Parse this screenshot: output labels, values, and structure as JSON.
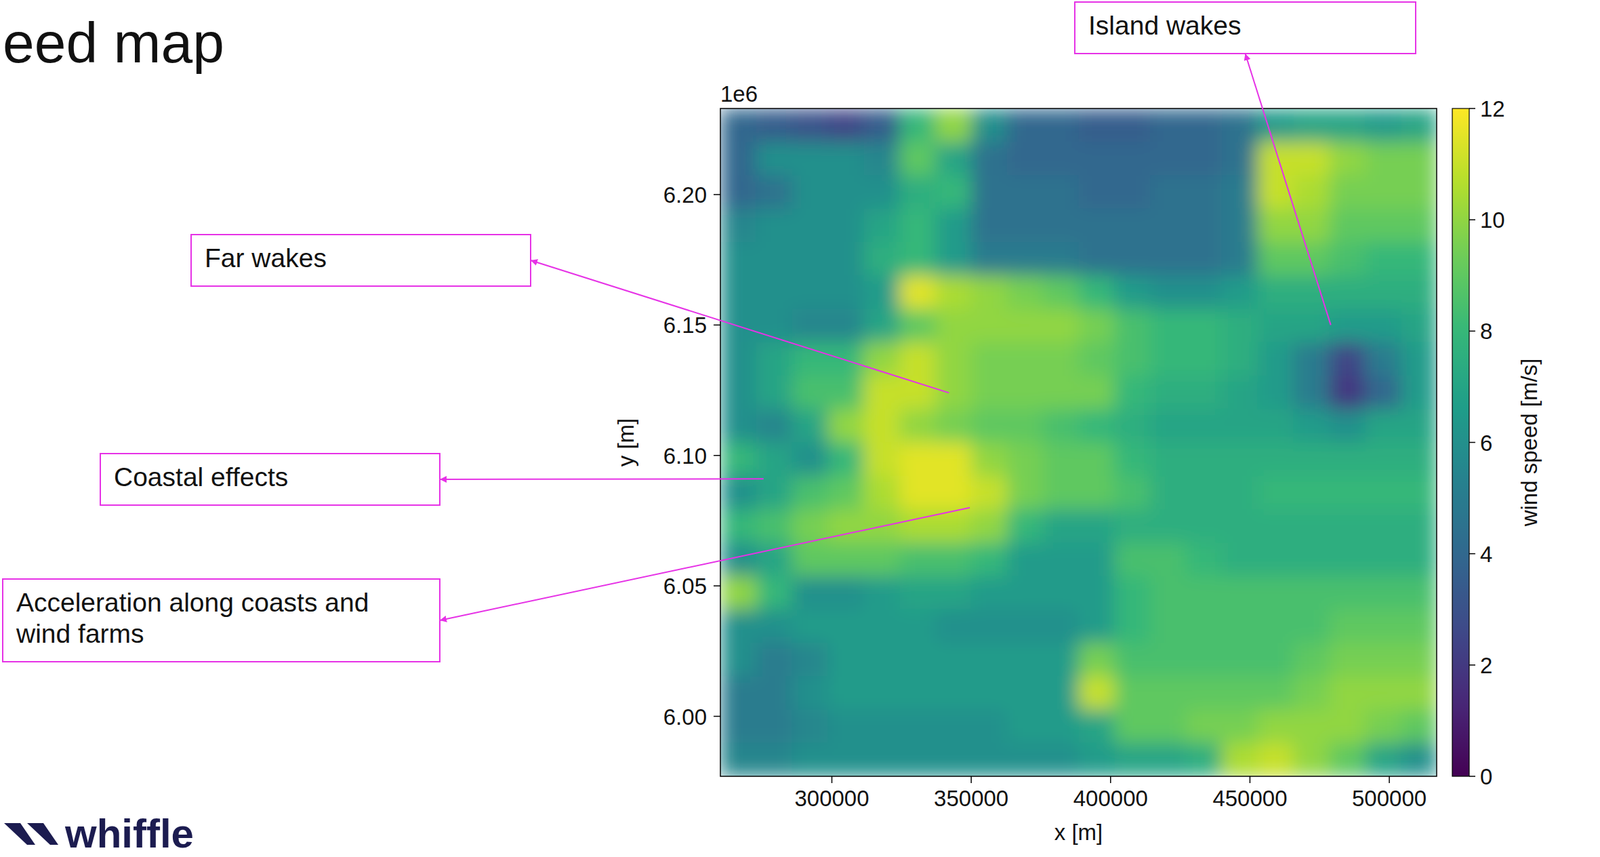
{
  "chart_data": {
    "type": "heatmap",
    "title": "eed map",
    "x_label": "x [m]",
    "y_label": "y [m]",
    "y_offset_label": "1e6",
    "xlim": [
      260000,
      517000
    ],
    "ylim": [
      5977000,
      6233000
    ],
    "xticks": [
      300000,
      350000,
      400000,
      450000,
      500000
    ],
    "yticks": [
      {
        "value": 6000000,
        "label": "6.00"
      },
      {
        "value": 6050000,
        "label": "6.05"
      },
      {
        "value": 6100000,
        "label": "6.10"
      },
      {
        "value": 6150000,
        "label": "6.15"
      },
      {
        "value": 6200000,
        "label": "6.20"
      }
    ],
    "color": "viridis",
    "colorbar": {
      "label": "wind speed [m/s]",
      "range": [
        0,
        12
      ],
      "ticks": [
        0,
        2,
        4,
        6,
        8,
        10,
        12
      ]
    },
    "cells": [
      [
        4,
        3.5,
        3,
        2.5,
        3.5,
        8,
        10,
        6,
        4,
        4,
        3.5,
        3.5,
        4,
        4,
        4.5,
        6.5,
        7,
        7,
        6.5,
        7
      ],
      [
        4,
        6,
        6,
        6,
        5.5,
        9,
        7,
        4.5,
        4,
        4,
        4,
        4,
        4,
        4,
        4.5,
        11,
        11,
        10,
        9.5,
        9.5
      ],
      [
        4,
        4.5,
        6,
        6,
        6,
        7.5,
        8,
        4.5,
        4.5,
        4.5,
        4,
        4,
        4.5,
        4.5,
        5,
        11,
        10.5,
        9.5,
        9.5,
        9.5
      ],
      [
        5.5,
        6,
        6,
        6,
        7,
        8,
        6.5,
        4.5,
        4.5,
        4.5,
        4.5,
        4.5,
        4.5,
        4.5,
        5,
        10,
        10,
        9,
        9,
        9
      ],
      [
        6,
        6,
        6,
        6,
        7.5,
        8,
        6.5,
        5,
        5,
        5,
        4.5,
        4.5,
        4.5,
        4.5,
        5,
        9,
        9,
        8.5,
        8,
        8
      ],
      [
        6,
        6,
        6,
        6,
        6.5,
        11.5,
        10.5,
        10,
        9.5,
        9,
        8,
        6.5,
        6,
        6,
        6.5,
        7.5,
        7.5,
        7.5,
        7.5,
        7.5
      ],
      [
        6,
        6,
        5.5,
        5.5,
        7,
        9,
        10,
        10,
        10,
        10,
        9.5,
        8.5,
        8,
        8,
        7.5,
        7,
        7,
        6.5,
        6.5,
        7
      ],
      [
        6,
        7,
        8,
        8,
        10,
        11,
        10,
        9.5,
        9.5,
        9.5,
        9,
        8.5,
        8,
        8,
        7.5,
        6.5,
        5,
        2.5,
        5,
        6.5
      ],
      [
        6,
        7,
        8.5,
        8.5,
        11,
        11,
        10,
        9.5,
        9.5,
        9.5,
        9.5,
        8,
        7.5,
        7.5,
        7,
        6.5,
        5,
        2,
        4,
        6.5
      ],
      [
        6,
        5.5,
        7,
        10,
        11,
        10,
        9.5,
        9,
        9,
        8.5,
        8,
        7.5,
        7,
        7,
        7,
        7,
        6.5,
        6,
        7,
        7
      ],
      [
        8,
        7,
        6,
        8,
        11,
        11.5,
        11.5,
        10,
        9.5,
        9,
        9,
        8,
        7.5,
        7.5,
        7.5,
        7.5,
        7.5,
        7.5,
        7.5,
        7.5
      ],
      [
        6,
        7,
        8.5,
        9,
        10.5,
        11.5,
        11.5,
        11,
        9.5,
        9,
        9,
        8.5,
        7.5,
        7.5,
        7.5,
        8,
        8,
        8,
        8,
        8
      ],
      [
        8,
        8.5,
        9.5,
        10,
        10,
        10.5,
        10.5,
        10,
        8,
        7,
        7,
        7.5,
        7.5,
        7.5,
        7.5,
        7.5,
        7.5,
        7.5,
        7.5,
        7.5
      ],
      [
        6,
        7,
        9,
        9,
        9,
        8.5,
        8.5,
        8,
        6.5,
        6.5,
        6.5,
        8.5,
        8.5,
        8,
        7.5,
        7.5,
        7.5,
        7.5,
        7.5,
        7.5
      ],
      [
        10,
        8,
        6,
        6,
        6.5,
        7,
        7,
        6.5,
        6.5,
        6.5,
        6.5,
        8,
        8.5,
        8.5,
        8.5,
        8.5,
        8.5,
        8.5,
        8.5,
        8.5
      ],
      [
        6,
        6,
        6.5,
        6.5,
        6.5,
        6.5,
        6,
        6,
        6,
        6,
        6.5,
        8,
        8.5,
        8.5,
        8.5,
        8.5,
        8.5,
        9,
        9,
        9
      ],
      [
        6,
        5,
        5.5,
        6.5,
        6.5,
        6.5,
        6.5,
        6.5,
        6.5,
        6.5,
        9.5,
        8.5,
        8.5,
        8.5,
        8.5,
        8.5,
        9,
        9.5,
        9.5,
        9.5
      ],
      [
        5,
        5,
        6,
        6.5,
        6.5,
        6.5,
        6.5,
        6.5,
        6.5,
        6.5,
        11,
        9,
        9,
        9,
        9,
        9,
        9.5,
        10,
        10,
        10
      ],
      [
        5,
        5,
        5.5,
        6,
        6,
        6,
        6,
        6,
        6.5,
        6.5,
        7,
        9,
        9,
        9.5,
        9.5,
        10,
        10,
        10,
        9.5,
        9
      ],
      [
        5.5,
        5.5,
        6,
        6,
        6,
        6,
        6,
        6,
        6,
        6,
        6.5,
        7,
        7,
        7.5,
        10.5,
        11,
        10,
        9,
        7,
        6
      ]
    ],
    "annotations": [
      {
        "text": "Island wakes",
        "x": 479000,
        "y": 6150000
      },
      {
        "text": "Far wakes",
        "x": 342000,
        "y": 6124000
      },
      {
        "text": "Coastal effects",
        "x": 275500,
        "y": 6091000
      },
      {
        "text": "Acceleration along coasts and wind farms",
        "x": 349500,
        "y": 6080000
      }
    ],
    "logo": "whiffle"
  }
}
